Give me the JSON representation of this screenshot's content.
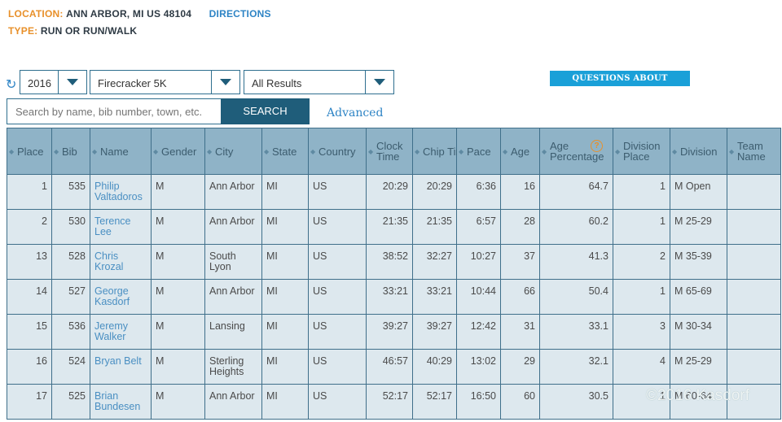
{
  "location": {
    "label": "LOCATION:",
    "value": "ANN ARBOR, MI US 48104",
    "link": "DIRECTIONS"
  },
  "type": {
    "label": "TYPE:",
    "value": "RUN OR RUN/WALK"
  },
  "filters": {
    "refresh_icon": "↻",
    "year": "2016",
    "event": "Firecracker 5K",
    "results": "All Results"
  },
  "questions_button": "QUESTIONS ABOUT RESULTS?",
  "search": {
    "placeholder": "Search by name, bib number, town, etc.",
    "button": "SEARCH",
    "advanced": "Advanced"
  },
  "table": {
    "headers": [
      "Place",
      "Bib",
      "Name",
      "Gender",
      "City",
      "State",
      "Country",
      "Clock Time",
      "Chip Time",
      "Pace",
      "Age",
      "Age Percentage",
      "Division Place",
      "Division",
      "Team Name"
    ],
    "rows": [
      {
        "place": "1",
        "bib": "535",
        "name": "Philip Valtadoros",
        "gender": "M",
        "city": "Ann Arbor",
        "state": "MI",
        "country": "US",
        "clock": "20:29",
        "chip": "20:29",
        "pace": "6:36",
        "age": "16",
        "agepct": "64.7",
        "divplace": "1",
        "division": "M Open",
        "team": ""
      },
      {
        "place": "2",
        "bib": "530",
        "name": "Terence Lee",
        "gender": "M",
        "city": "Ann Arbor",
        "state": "MI",
        "country": "US",
        "clock": "21:35",
        "chip": "21:35",
        "pace": "6:57",
        "age": "28",
        "agepct": "60.2",
        "divplace": "1",
        "division": "M 25-29",
        "team": ""
      },
      {
        "place": "13",
        "bib": "528",
        "name": "Chris Krozal",
        "gender": "M",
        "city": "South Lyon",
        "state": "MI",
        "country": "US",
        "clock": "38:52",
        "chip": "32:27",
        "pace": "10:27",
        "age": "37",
        "agepct": "41.3",
        "divplace": "2",
        "division": "M 35-39",
        "team": ""
      },
      {
        "place": "14",
        "bib": "527",
        "name": "George Kasdorf",
        "gender": "M",
        "city": "Ann Arbor",
        "state": "MI",
        "country": "US",
        "clock": "33:21",
        "chip": "33:21",
        "pace": "10:44",
        "age": "66",
        "agepct": "50.4",
        "divplace": "1",
        "division": "M 65-69",
        "team": ""
      },
      {
        "place": "15",
        "bib": "536",
        "name": "Jeremy Walker",
        "gender": "M",
        "city": "Lansing",
        "state": "MI",
        "country": "US",
        "clock": "39:27",
        "chip": "39:27",
        "pace": "12:42",
        "age": "31",
        "agepct": "33.1",
        "divplace": "3",
        "division": "M 30-34",
        "team": ""
      },
      {
        "place": "16",
        "bib": "524",
        "name": "Bryan Belt",
        "gender": "M",
        "city": "Sterling Heights",
        "state": "MI",
        "country": "US",
        "clock": "46:57",
        "chip": "40:29",
        "pace": "13:02",
        "age": "29",
        "agepct": "32.1",
        "divplace": "4",
        "division": "M 25-29",
        "team": ""
      },
      {
        "place": "17",
        "bib": "525",
        "name": "Brian Bundesen",
        "gender": "M",
        "city": "Ann Arbor",
        "state": "MI",
        "country": "US",
        "clock": "52:17",
        "chip": "52:17",
        "pace": "16:50",
        "age": "60",
        "agepct": "30.5",
        "divplace": "1",
        "division": "M 60-64",
        "team": ""
      }
    ]
  },
  "watermark": "©2016 Kasdorf"
}
